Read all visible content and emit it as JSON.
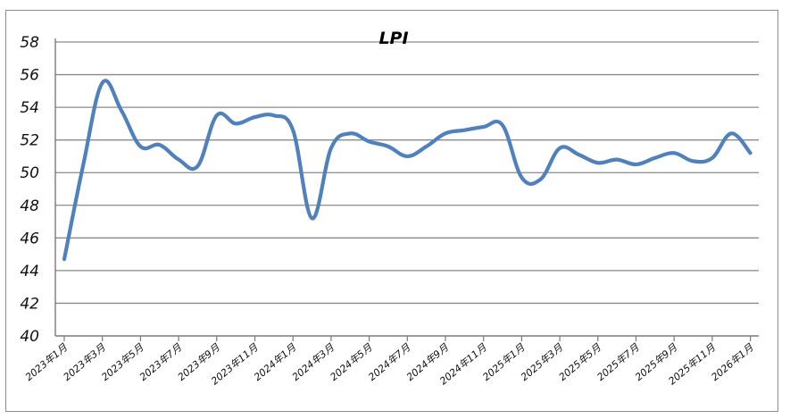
{
  "chart_data": {
    "type": "line",
    "title": "LPI",
    "xlabel": "",
    "ylabel": "",
    "ylim": [
      40,
      58
    ],
    "yticks": [
      40,
      42,
      44,
      46,
      48,
      50,
      52,
      54,
      56,
      58
    ],
    "grid": true,
    "legend": "none",
    "x_tick_labels": [
      "2023年1月",
      "2023年3月",
      "2023年5月",
      "2023年7月",
      "2023年9月",
      "2023年11月",
      "2024年1月",
      "2024年3月",
      "2024年5月",
      "2024年7月",
      "2024年9月",
      "2024年11月",
      "2025年1月",
      "2025年3月",
      "2025年5月",
      "2025年7月",
      "2025年9月",
      "2025年11月",
      "2026年1月"
    ],
    "x": [
      "2023年1月",
      "2023年2月",
      "2023年3月",
      "2023年4月",
      "2023年5月",
      "2023年6月",
      "2023年7月",
      "2023年8月",
      "2023年9月",
      "2023年10月",
      "2023年11月",
      "2023年12月",
      "2024年1月",
      "2024年2月",
      "2024年3月",
      "2024年4月",
      "2024年5月",
      "2024年6月",
      "2024年7月",
      "2024年8月",
      "2024年9月",
      "2024年10月",
      "2024年11月",
      "2024年12月",
      "2025年1月",
      "2025年2月",
      "2025年3月",
      "2025年4月",
      "2025年5月",
      "2025年6月",
      "2025年7月",
      "2025年8月",
      "2025年9月",
      "2025年10月",
      "2025年11月",
      "2025年12月",
      "2026年1月"
    ],
    "series": [
      {
        "values": [
          44.7,
          50.5,
          55.5,
          53.8,
          51.6,
          51.7,
          50.8,
          50.4,
          53.5,
          53.0,
          53.4,
          53.5,
          52.6,
          47.2,
          51.5,
          52.4,
          51.9,
          51.6,
          51.0,
          51.6,
          52.4,
          52.6,
          52.8,
          52.9,
          49.7,
          49.6,
          51.5,
          51.1,
          50.6,
          50.8,
          50.5,
          50.9,
          51.2,
          50.7,
          50.9,
          52.4,
          51.2
        ],
        "color": "#4f81bd"
      }
    ]
  }
}
